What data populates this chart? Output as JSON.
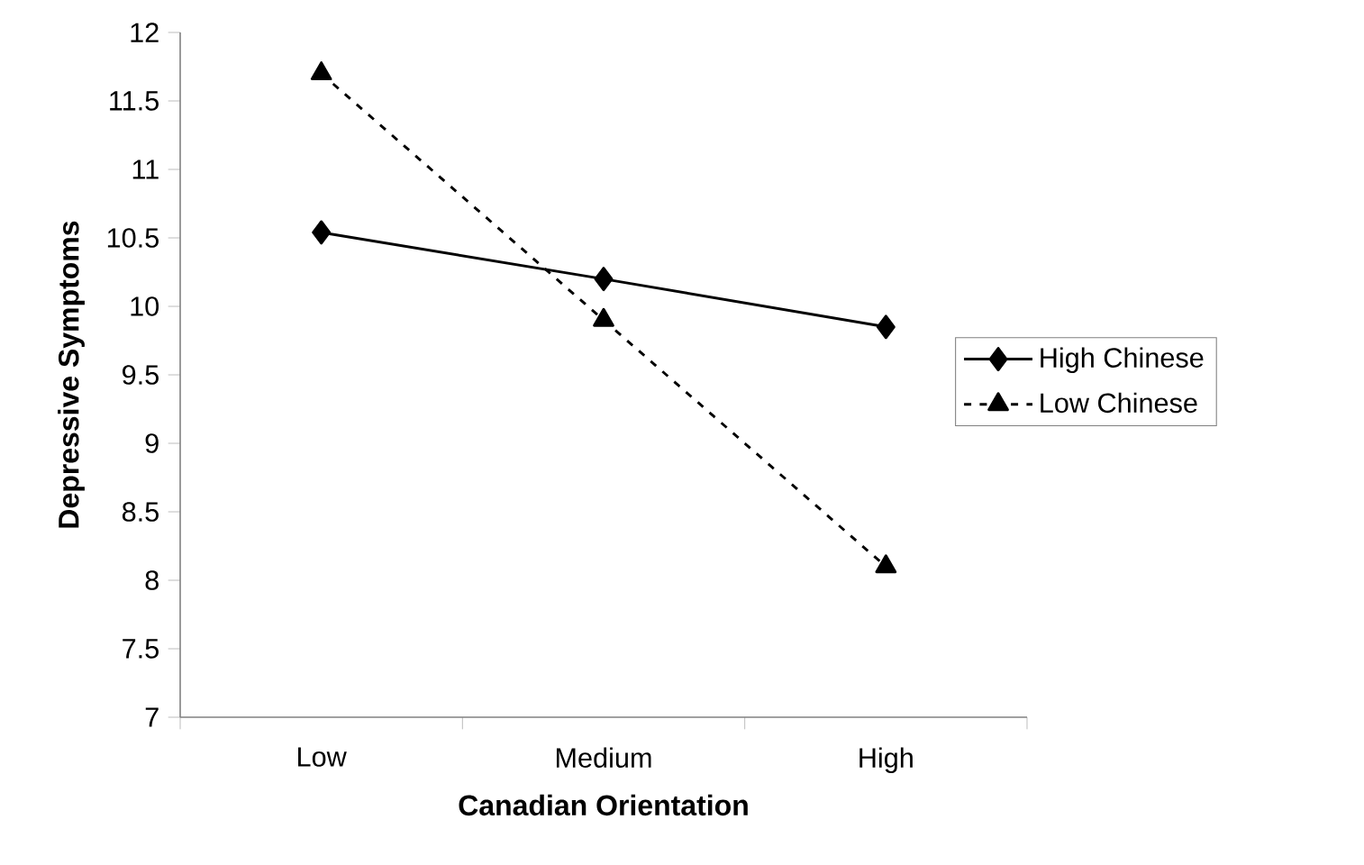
{
  "chart_data": {
    "type": "line",
    "xlabel": "Canadian Orientation",
    "ylabel": "Depressive Symptoms",
    "categories": [
      "Low",
      "Medium",
      "High"
    ],
    "series": [
      {
        "name": "High Chinese",
        "color": "#000000",
        "marker": "diamond",
        "line_style": "solid",
        "values": [
          10.54,
          10.2,
          9.85
        ]
      },
      {
        "name": "Low Chinese",
        "color": "#000000",
        "marker": "triangle",
        "line_style": "dashed",
        "values": [
          11.7,
          9.9,
          8.1
        ]
      }
    ],
    "ylim": [
      7,
      12
    ],
    "yticks": [
      7,
      7.5,
      8,
      8.5,
      9,
      9.5,
      10,
      10.5,
      11,
      11.5,
      12
    ],
    "legend": "right"
  }
}
